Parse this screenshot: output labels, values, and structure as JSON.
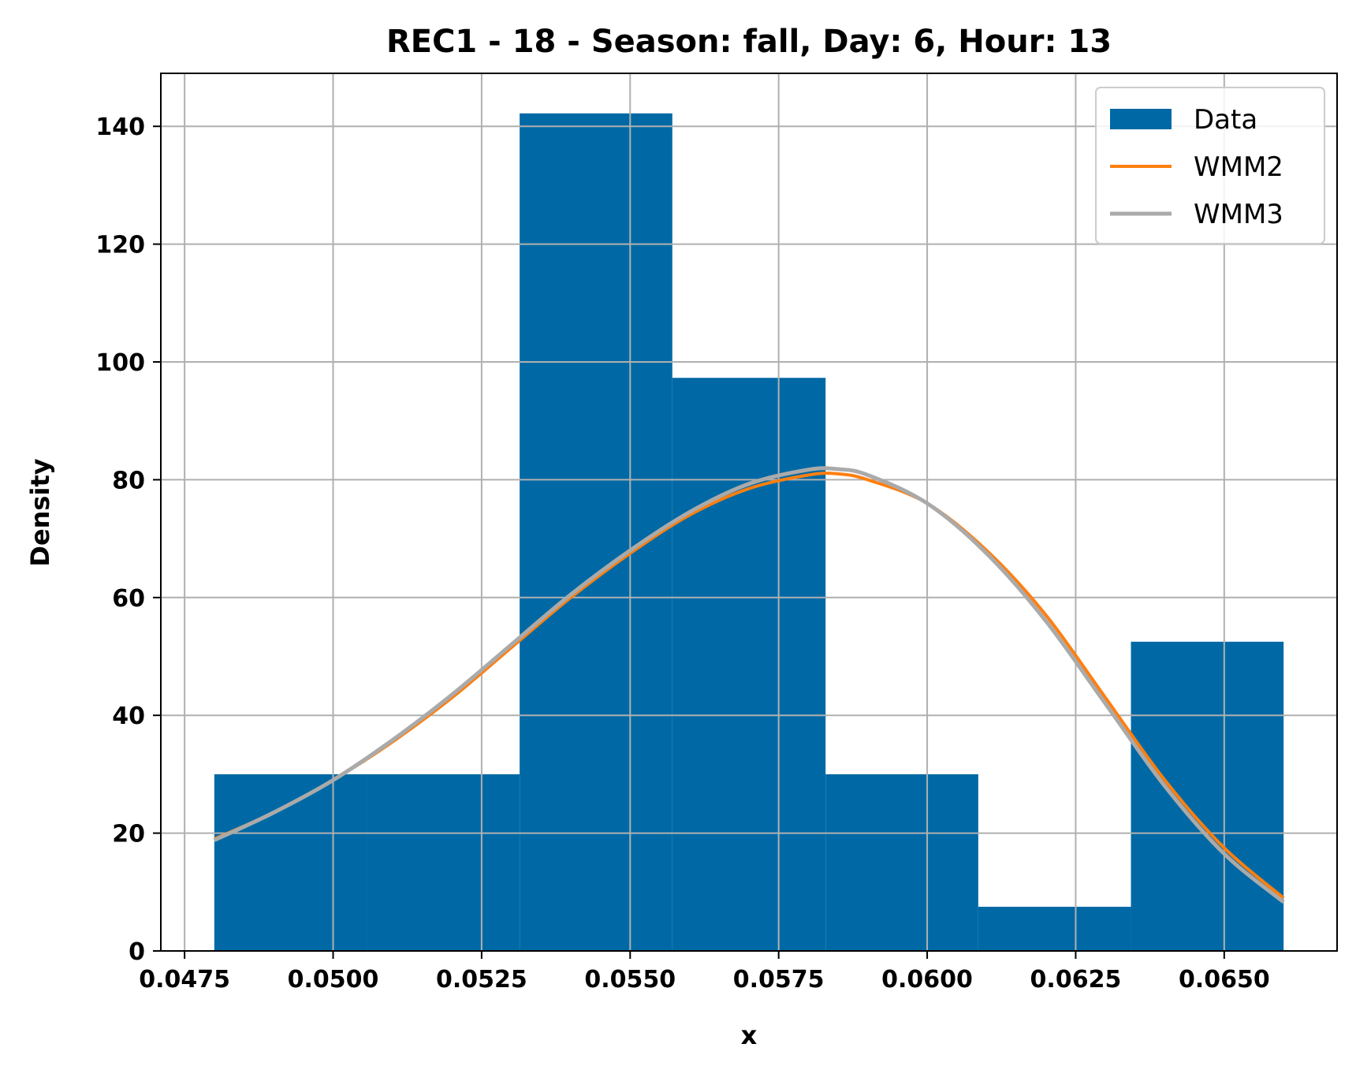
{
  "chart_data": {
    "type": "bar",
    "title": "REC1 - 18 - Season: fall, Day: 6, Hour: 13",
    "xlabel": "x",
    "ylabel": "Density",
    "xlim": [
      0.0471,
      0.0669
    ],
    "ylim": [
      0,
      149
    ],
    "x_ticks": [
      0.0475,
      0.05,
      0.0525,
      0.055,
      0.0575,
      0.06,
      0.0625,
      0.065
    ],
    "x_tick_labels": [
      "0.0475",
      "0.0500",
      "0.0525",
      "0.0550",
      "0.0575",
      "0.0600",
      "0.0625",
      "0.0650"
    ],
    "y_ticks": [
      0,
      20,
      40,
      60,
      80,
      100,
      120,
      140
    ],
    "y_tick_labels": [
      "0",
      "20",
      "40",
      "60",
      "80",
      "100",
      "120",
      "140"
    ],
    "grid": true,
    "legend_position": "top-right",
    "histogram": {
      "name": "Data",
      "color": "#0069a5",
      "bins": [
        {
          "x0": 0.048,
          "x1": 0.05057,
          "value": 30
        },
        {
          "x0": 0.05057,
          "x1": 0.05314,
          "value": 30
        },
        {
          "x0": 0.05314,
          "x1": 0.05571,
          "value": 142.2
        },
        {
          "x0": 0.05571,
          "x1": 0.05829,
          "value": 97.3
        },
        {
          "x0": 0.05829,
          "x1": 0.06086,
          "value": 30
        },
        {
          "x0": 0.06086,
          "x1": 0.06343,
          "value": 7.5
        },
        {
          "x0": 0.06343,
          "x1": 0.066,
          "value": 52.5
        }
      ]
    },
    "series": [
      {
        "name": "WMM2",
        "color": "#ff7f0e",
        "x": [
          0.048,
          0.049,
          0.05,
          0.051,
          0.052,
          0.053,
          0.054,
          0.055,
          0.056,
          0.057,
          0.058,
          0.0585,
          0.059,
          0.06,
          0.061,
          0.062,
          0.063,
          0.064,
          0.065,
          0.066
        ],
        "y": [
          19,
          23.5,
          29,
          35.5,
          43,
          51.5,
          60,
          67.5,
          74,
          78.5,
          80.8,
          81,
          80,
          76,
          68,
          57,
          43,
          29,
          17.5,
          9
        ]
      },
      {
        "name": "WMM3",
        "color": "#aaaaaa",
        "x": [
          0.048,
          0.049,
          0.05,
          0.051,
          0.052,
          0.053,
          0.054,
          0.055,
          0.056,
          0.057,
          0.058,
          0.0585,
          0.059,
          0.06,
          0.061,
          0.062,
          0.063,
          0.064,
          0.065,
          0.066
        ],
        "y": [
          18.8,
          23.5,
          29,
          35.8,
          43.5,
          52,
          60.5,
          68,
          74.5,
          79.3,
          81.7,
          81.8,
          80.8,
          76,
          67.5,
          56,
          42,
          28,
          16.5,
          8.3
        ]
      }
    ]
  },
  "colors": {
    "grid": "#b0b0b0",
    "axes": "#000000",
    "legend_border": "#cccccc"
  }
}
